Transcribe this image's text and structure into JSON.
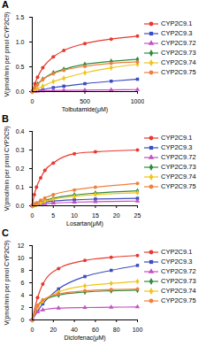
{
  "chart_data": [
    {
      "type": "line",
      "title": "A",
      "x_label": "Tolbutamide(μM)",
      "y_label": "V(pmol/min per pmol CYP2C9)",
      "x": [
        0,
        25,
        50,
        100,
        200,
        300,
        500,
        750,
        1000
      ],
      "xlim": [
        0,
        1000
      ],
      "xticks": [
        0,
        500,
        1000
      ],
      "ylim": [
        0,
        1.5
      ],
      "yticks": [
        {
          "value": 0,
          "label": "0.0"
        },
        {
          "value": 0.5,
          "label": "0.5"
        },
        {
          "value": 1,
          "label": "1.0"
        },
        {
          "value": 1.5,
          "label": "1.5"
        }
      ],
      "grid": false,
      "legend": "right",
      "series": [
        {
          "name": "CYP2C9.1",
          "color": "#e8382f",
          "marker": "circle",
          "values": [
            0,
            0.16,
            0.29,
            0.48,
            0.7,
            0.83,
            0.97,
            1.06,
            1.12
          ]
        },
        {
          "name": "CYP2C9.3",
          "color": "#3a4cc0",
          "marker": "square",
          "values": [
            0,
            0.01,
            0.02,
            0.04,
            0.08,
            0.11,
            0.16,
            0.21,
            0.25
          ]
        },
        {
          "name": "CYP2C9.72",
          "color": "#c54fc2",
          "marker": "triangle",
          "values": [
            0,
            0.005,
            0.01,
            0.015,
            0.02,
            0.025,
            0.03,
            0.035,
            0.04
          ]
        },
        {
          "name": "CYP2C9.73",
          "color": "#2e8b3e",
          "marker": "diamond",
          "values": [
            0,
            0.08,
            0.15,
            0.25,
            0.38,
            0.45,
            0.55,
            0.61,
            0.65
          ]
        },
        {
          "name": "CYP2C9.74",
          "color": "#f0c419",
          "marker": "diamond",
          "values": [
            0,
            0.03,
            0.06,
            0.11,
            0.2,
            0.27,
            0.38,
            0.48,
            0.55
          ]
        },
        {
          "name": "CYP2C9.75",
          "color": "#f07f3a",
          "marker": "circle",
          "values": [
            0,
            0.08,
            0.14,
            0.24,
            0.36,
            0.43,
            0.51,
            0.57,
            0.6
          ]
        }
      ]
    },
    {
      "type": "line",
      "title": "B",
      "x_label": "Losartan(μM)",
      "y_label": "V(pmol/min per pmol CYP2C9)",
      "x": [
        0,
        0.5,
        1,
        2,
        3,
        5,
        10,
        15,
        25
      ],
      "xlim": [
        0,
        25
      ],
      "xticks": [
        0,
        5,
        10,
        15,
        20,
        25
      ],
      "ylim": [
        0,
        0.4
      ],
      "yticks": [
        {
          "value": 0,
          "label": "0.0"
        },
        0.1,
        0.2,
        0.3,
        0.4
      ],
      "grid": false,
      "legend": "right",
      "series": [
        {
          "name": "CYP2C9.1",
          "color": "#e8382f",
          "marker": "circle",
          "values": [
            0,
            0.06,
            0.1,
            0.15,
            0.19,
            0.23,
            0.28,
            0.29,
            0.3
          ]
        },
        {
          "name": "CYP2C9.3",
          "color": "#3a4cc0",
          "marker": "square",
          "values": [
            0,
            0.005,
            0.01,
            0.015,
            0.02,
            0.025,
            0.032,
            0.036,
            0.04
          ]
        },
        {
          "name": "CYP2C9.72",
          "color": "#c54fc2",
          "marker": "triangle",
          "values": [
            0,
            0.003,
            0.005,
            0.008,
            0.011,
            0.014,
            0.019,
            0.022,
            0.025
          ]
        },
        {
          "name": "CYP2C9.73",
          "color": "#2e8b3e",
          "marker": "diamond",
          "values": [
            0,
            0.005,
            0.01,
            0.02,
            0.028,
            0.04,
            0.058,
            0.068,
            0.08
          ]
        },
        {
          "name": "CYP2C9.74",
          "color": "#f0c419",
          "marker": "diamond",
          "values": [
            0,
            0.004,
            0.008,
            0.016,
            0.024,
            0.035,
            0.05,
            0.06,
            0.07
          ]
        },
        {
          "name": "CYP2C9.75",
          "color": "#f07f3a",
          "marker": "circle",
          "values": [
            0,
            0.008,
            0.016,
            0.03,
            0.042,
            0.06,
            0.085,
            0.1,
            0.12
          ]
        }
      ]
    },
    {
      "type": "line",
      "title": "C",
      "x_label": "Diclofenac(μM)",
      "y_label": "V(pmol/min per pmol CYP2C9)",
      "x": [
        0,
        5,
        10,
        25,
        50,
        75,
        100
      ],
      "xlim": [
        0,
        100
      ],
      "xticks": [
        0,
        20,
        40,
        60,
        80,
        100
      ],
      "ylim": [
        0,
        12
      ],
      "yticks": [
        0,
        2,
        4,
        6,
        8,
        10,
        12
      ],
      "grid": false,
      "legend": "right",
      "series": [
        {
          "name": "CYP2C9.1",
          "color": "#e8382f",
          "marker": "circle",
          "values": [
            0,
            3.6,
            5.8,
            8.3,
            9.6,
            10.1,
            10.4
          ]
        },
        {
          "name": "CYP2C9.3",
          "color": "#3a4cc0",
          "marker": "square",
          "values": [
            0,
            1.4,
            2.6,
            5.0,
            7.0,
            8.0,
            8.8
          ]
        },
        {
          "name": "CYP2C9.72",
          "color": "#c54fc2",
          "marker": "triangle",
          "values": [
            0,
            1.3,
            1.6,
            1.9,
            2.0,
            2.05,
            2.1
          ]
        },
        {
          "name": "CYP2C9.73",
          "color": "#2e8b3e",
          "marker": "diamond",
          "values": [
            0,
            2.2,
            3.1,
            4.0,
            4.5,
            4.7,
            4.8
          ]
        },
        {
          "name": "CYP2C9.74",
          "color": "#f0c419",
          "marker": "diamond",
          "values": [
            0,
            2.0,
            3.0,
            4.5,
            5.5,
            5.9,
            6.2
          ]
        },
        {
          "name": "CYP2C9.75",
          "color": "#f07f3a",
          "marker": "circle",
          "values": [
            0,
            2.3,
            3.2,
            4.2,
            4.7,
            4.9,
            5.0
          ]
        }
      ]
    }
  ]
}
